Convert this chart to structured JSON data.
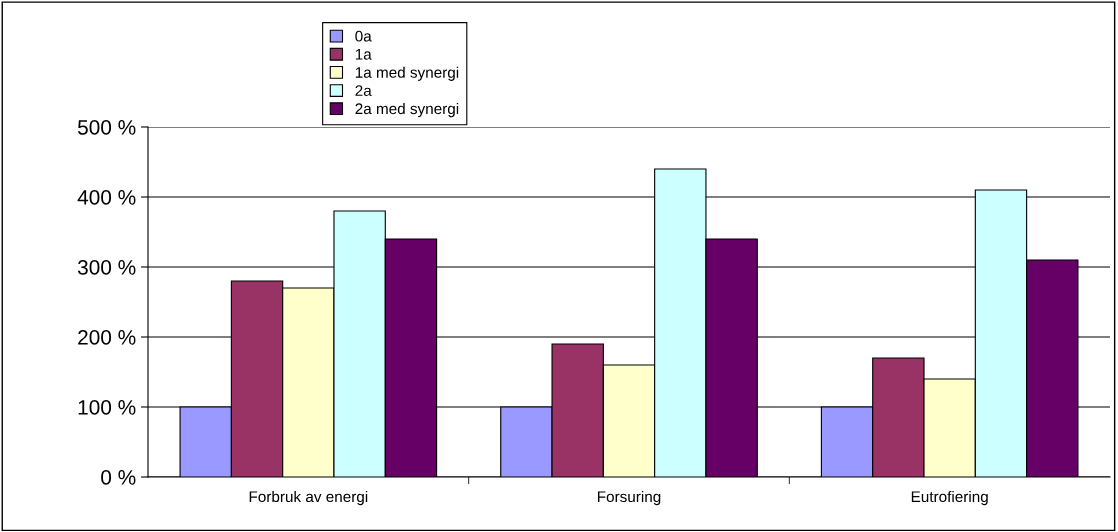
{
  "chart_data": {
    "type": "bar",
    "categories": [
      "Forbruk av energi",
      "Forsuring",
      "Eutrofiering"
    ],
    "series": [
      {
        "name": "0a",
        "color": "#9999ff",
        "values": [
          100,
          100,
          100
        ]
      },
      {
        "name": "1a",
        "color": "#993366",
        "values": [
          280,
          190,
          170
        ]
      },
      {
        "name": "1a med synergi",
        "color": "#ffffcc",
        "values": [
          270,
          160,
          140
        ]
      },
      {
        "name": "2a",
        "color": "#ccffff",
        "values": [
          380,
          440,
          410
        ]
      },
      {
        "name": "2a med synergi",
        "color": "#660066",
        "values": [
          340,
          340,
          310
        ]
      }
    ],
    "ylim": [
      0,
      500
    ],
    "yticks": [
      {
        "value": 0,
        "label": "0 %"
      },
      {
        "value": 100,
        "label": "100 %"
      },
      {
        "value": 200,
        "label": "200 %"
      },
      {
        "value": 300,
        "label": "300 %"
      },
      {
        "value": 400,
        "label": "400 %"
      },
      {
        "value": 500,
        "label": "500 %"
      }
    ],
    "grid": "y",
    "legend": "top"
  }
}
